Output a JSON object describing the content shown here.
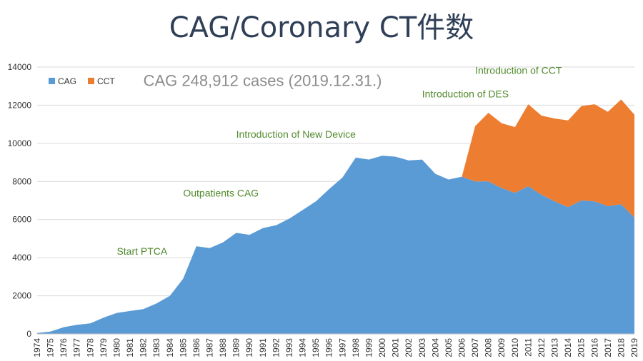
{
  "page": {
    "title": "CAG/Coronary CT件数"
  },
  "chart_data": {
    "type": "area",
    "stacked": true,
    "x": [
      "1974",
      "1975",
      "1976",
      "1977",
      "1978",
      "1979",
      "1980",
      "1981",
      "1982",
      "1983",
      "1984",
      "1985",
      "1986",
      "1987",
      "1988",
      "1989",
      "1990",
      "1991",
      "1992",
      "1993",
      "1994",
      "1995",
      "1996",
      "1997",
      "1998",
      "1999",
      "2000",
      "2001",
      "2002",
      "2003",
      "2004",
      "2005",
      "2006",
      "2007",
      "2008",
      "2009",
      "2010",
      "2011",
      "2012",
      "2013",
      "2014",
      "2015",
      "2016",
      "2017",
      "2018",
      "2019"
    ],
    "series": [
      {
        "name": "CAG",
        "color": "#5b9bd5",
        "values": [
          50,
          120,
          350,
          480,
          550,
          850,
          1100,
          1200,
          1300,
          1600,
          2000,
          2900,
          4600,
          4500,
          4800,
          5300,
          5200,
          5550,
          5700,
          6050,
          6500,
          6950,
          7600,
          8200,
          9250,
          9150,
          9350,
          9300,
          9100,
          9150,
          8400,
          8100,
          8250,
          8000,
          8000,
          7650,
          7400,
          7750,
          7300,
          6950,
          6650,
          7000,
          6950,
          6700,
          6800,
          6100
        ]
      },
      {
        "name": "CCT",
        "color": "#ed7d31",
        "values": [
          0,
          0,
          0,
          0,
          0,
          0,
          0,
          0,
          0,
          0,
          0,
          0,
          0,
          0,
          0,
          0,
          0,
          0,
          0,
          0,
          0,
          0,
          0,
          0,
          0,
          0,
          0,
          0,
          0,
          0,
          0,
          0,
          0,
          2900,
          3600,
          3400,
          3450,
          4300,
          4150,
          4350,
          4550,
          4950,
          5100,
          4950,
          5500,
          5400
        ]
      }
    ],
    "ylim": [
      0,
      14000
    ],
    "yticks": [
      "0",
      "2000",
      "4000",
      "6000",
      "8000",
      "10000",
      "12000",
      "14000"
    ],
    "grid": true,
    "legend_position": "top-left",
    "annotations": [
      {
        "text": "CAG 248,912 cases (2019.12.31.)",
        "style": "gray",
        "x": "1982",
        "y": 13000
      },
      {
        "text": "Introduction of CCT",
        "style": "green",
        "x": "2007",
        "y": 13650
      },
      {
        "text": "Introduction of DES",
        "style": "green",
        "x": "2003",
        "y": 12400
      },
      {
        "text": "Introduction of New Device",
        "style": "green",
        "x": "1989",
        "y": 10300
      },
      {
        "text": "Outpatients CAG",
        "style": "green",
        "x": "1985",
        "y": 7200
      },
      {
        "text": "Start PTCA",
        "style": "green",
        "x": "1980",
        "y": 4150
      }
    ]
  }
}
